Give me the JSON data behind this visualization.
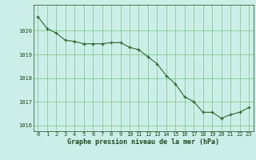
{
  "x": [
    0,
    1,
    2,
    3,
    4,
    5,
    6,
    7,
    8,
    9,
    10,
    11,
    12,
    13,
    14,
    15,
    16,
    17,
    18,
    19,
    20,
    21,
    22,
    23
  ],
  "y": [
    1020.6,
    1020.1,
    1019.9,
    1019.6,
    1019.55,
    1019.45,
    1019.45,
    1019.45,
    1019.5,
    1019.5,
    1019.3,
    1019.2,
    1018.9,
    1018.6,
    1018.1,
    1017.75,
    1017.2,
    1017.0,
    1016.55,
    1016.55,
    1016.3,
    1016.45,
    1016.55,
    1016.75
  ],
  "line_color": "#2d6a2d",
  "marker_color": "#2d6a2d",
  "bg_color": "#cceee8",
  "grid_color": "#66bb66",
  "xlabel": "Graphe pression niveau de la mer (hPa)",
  "xlabel_color": "#1a4a1a",
  "tick_color": "#1a4a1a",
  "ylim": [
    1015.75,
    1021.1
  ],
  "yticks": [
    1016,
    1017,
    1018,
    1019,
    1020
  ],
  "xlim": [
    -0.5,
    23.5
  ],
  "xticks": [
    0,
    1,
    2,
    3,
    4,
    5,
    6,
    7,
    8,
    9,
    10,
    11,
    12,
    13,
    14,
    15,
    16,
    17,
    18,
    19,
    20,
    21,
    22,
    23
  ]
}
